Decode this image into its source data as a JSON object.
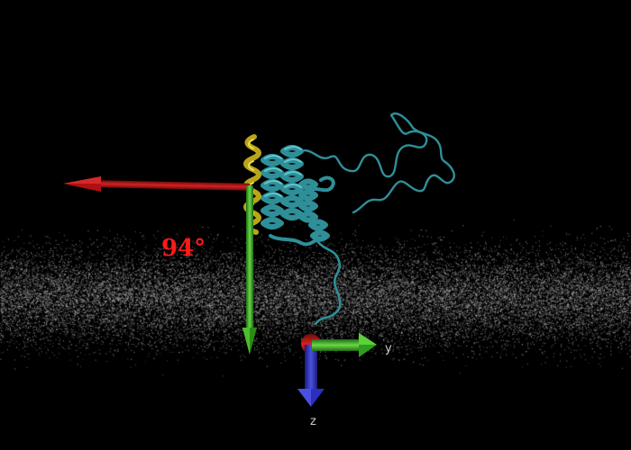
{
  "viewer": {
    "background_color": "#000000",
    "membrane_color": "#cfcfcf",
    "angle_label": "94°",
    "angle_label_color": "#ff1a1a",
    "tilt_vector_color": "#b01010",
    "normal_vector_color": "#3ca51c",
    "helix_color": "#b8a51a",
    "protein_color": "#2f8f99",
    "axes": {
      "y_label": "y",
      "z_label": "z",
      "x_color": "#c03a3a",
      "y_color": "#2e9e1c",
      "z_color": "#2b2ec0"
    }
  }
}
